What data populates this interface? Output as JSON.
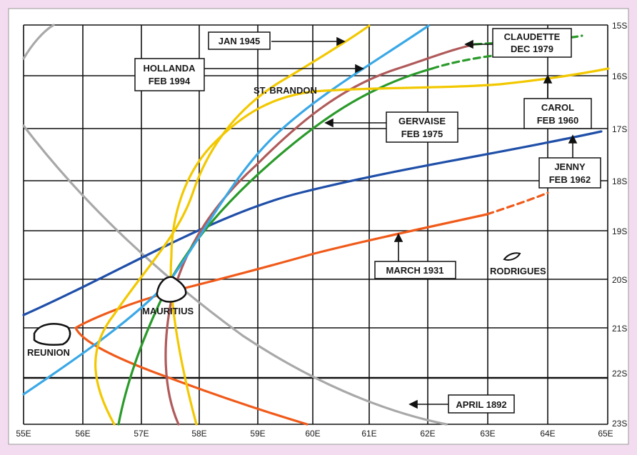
{
  "map": {
    "x_ticks": [
      "55E",
      "56E",
      "57E",
      "58E",
      "59E",
      "60E",
      "61E",
      "62E",
      "63E",
      "64E",
      "65E"
    ],
    "y_ticks": [
      "15S",
      "16S",
      "17S",
      "18S",
      "19S",
      "20S",
      "21S",
      "22S",
      "23S"
    ],
    "islands": {
      "reunion": "REUNION",
      "mauritius": "MAURITIUS",
      "rodrigues": "RODRIGUES",
      "st_brandon": "ST. BRANDON"
    },
    "labels": {
      "jan1945": "JAN 1945",
      "hollanda_1": "HOLLANDA",
      "hollanda_2": "FEB 1994",
      "claudette_1": "CLAUDETTE",
      "claudette_2": "DEC 1979",
      "gervaise_1": "GERVAISE",
      "gervaise_2": "FEB 1975",
      "carol_1": "CAROL",
      "carol_2": "FEB 1960",
      "jenny_1": "JENNY",
      "jenny_2": "FEB 1962",
      "march1931": "MARCH 1931",
      "april1892": "APRIL 1892"
    },
    "colors": {
      "grid": "#111111",
      "paper": "#ffffff",
      "background": "#f3dcef",
      "yellow": "#f2c800",
      "light_blue": "#3aa8e6",
      "dark_blue": "#1f4fa8",
      "green": "#2a9a2a",
      "brown": "#b05a5a",
      "orange": "#f05a1a",
      "gray": "#a8a8a8"
    }
  }
}
